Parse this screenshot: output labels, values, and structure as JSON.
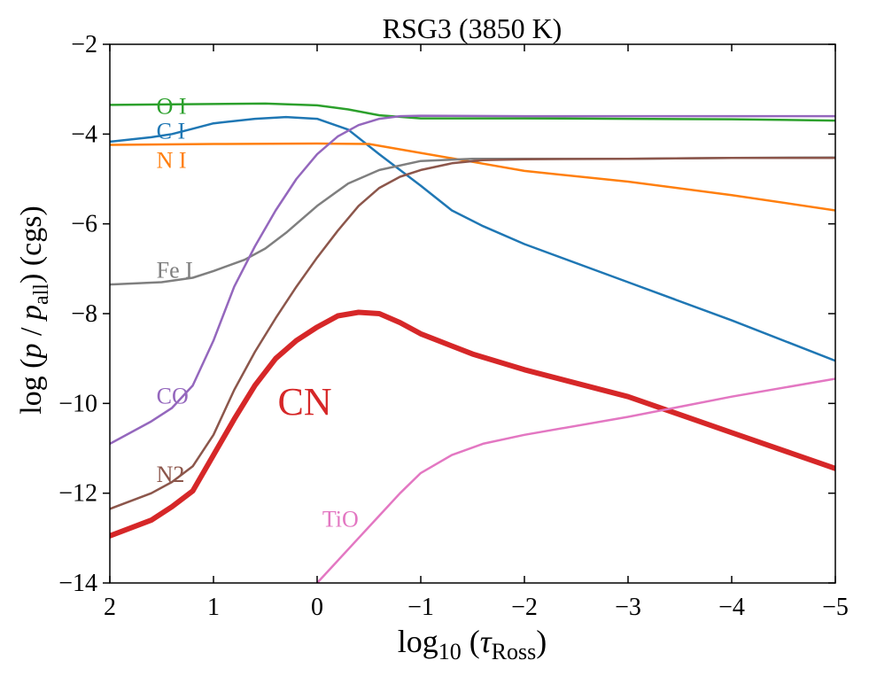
{
  "chart_data": {
    "type": "line",
    "title": "RSG3 (3850 K)",
    "xlabel": {
      "base": "log",
      "sub": "10",
      "mid": " (",
      "tau": "τ",
      "tausub": "Ross",
      "end": ")"
    },
    "ylabel": {
      "a": "log (",
      "p": "p",
      "slash": " / ",
      "p2": "p",
      "sub": "all",
      "end": ") (cgs)"
    },
    "xlim": [
      2,
      -5
    ],
    "ylim": [
      -14,
      -2
    ],
    "xticks": [
      2,
      1,
      0,
      -1,
      -2,
      -3,
      -4,
      -5
    ],
    "xtick_labels": [
      "2",
      "1",
      "0",
      "−1",
      "−2",
      "−3",
      "−4",
      "−5"
    ],
    "yticks": [
      -2,
      -4,
      -6,
      -8,
      -10,
      -12,
      -14
    ],
    "ytick_labels": [
      "−2",
      "−4",
      "−6",
      "−8",
      "−10",
      "−12",
      "−14"
    ],
    "grid": false,
    "series": [
      {
        "name": "O I",
        "color": "#2ca02c",
        "width": 2.5,
        "label_size": 26,
        "label_at": [
          1.55,
          -3.55
        ],
        "points": [
          [
            2,
            -3.35
          ],
          [
            1.5,
            -3.34
          ],
          [
            1,
            -3.33
          ],
          [
            0.5,
            -3.32
          ],
          [
            0,
            -3.36
          ],
          [
            -0.3,
            -3.45
          ],
          [
            -0.6,
            -3.58
          ],
          [
            -1,
            -3.65
          ],
          [
            -2,
            -3.65
          ],
          [
            -3,
            -3.66
          ],
          [
            -4,
            -3.67
          ],
          [
            -5,
            -3.7
          ]
        ]
      },
      {
        "name": "C I",
        "color": "#1f77b4",
        "width": 2.5,
        "label_size": 26,
        "label_at": [
          1.55,
          -4.1
        ],
        "points": [
          [
            2,
            -4.17
          ],
          [
            1.6,
            -4.07
          ],
          [
            1.4,
            -4.0
          ],
          [
            1.2,
            -3.88
          ],
          [
            1,
            -3.76
          ],
          [
            0.6,
            -3.66
          ],
          [
            0.3,
            -3.62
          ],
          [
            0,
            -3.66
          ],
          [
            -0.3,
            -3.9
          ],
          [
            -0.6,
            -4.45
          ],
          [
            -1,
            -5.15
          ],
          [
            -1.3,
            -5.7
          ],
          [
            -1.6,
            -6.05
          ],
          [
            -2,
            -6.45
          ],
          [
            -3,
            -7.3
          ],
          [
            -4,
            -8.15
          ],
          [
            -5,
            -9.05
          ]
        ]
      },
      {
        "name": "N I",
        "color": "#ff7f0e",
        "width": 2.5,
        "label_size": 26,
        "label_at": [
          1.55,
          -4.75
        ],
        "points": [
          [
            2,
            -4.24
          ],
          [
            1,
            -4.22
          ],
          [
            0,
            -4.21
          ],
          [
            -0.5,
            -4.22
          ],
          [
            -1,
            -4.42
          ],
          [
            -1.5,
            -4.62
          ],
          [
            -2,
            -4.82
          ],
          [
            -3,
            -5.06
          ],
          [
            -4,
            -5.36
          ],
          [
            -5,
            -5.7
          ]
        ]
      },
      {
        "name": "Fe I",
        "color": "#7f7f7f",
        "width": 2.5,
        "label_size": 26,
        "label_at": [
          1.55,
          -7.2
        ],
        "points": [
          [
            2,
            -7.35
          ],
          [
            1.5,
            -7.3
          ],
          [
            1.2,
            -7.2
          ],
          [
            1,
            -7.05
          ],
          [
            0.7,
            -6.8
          ],
          [
            0.5,
            -6.55
          ],
          [
            0.3,
            -6.2
          ],
          [
            0,
            -5.6
          ],
          [
            -0.3,
            -5.1
          ],
          [
            -0.6,
            -4.8
          ],
          [
            -1,
            -4.6
          ],
          [
            -1.5,
            -4.55
          ],
          [
            -2,
            -4.55
          ],
          [
            -3,
            -4.55
          ],
          [
            -4,
            -4.53
          ],
          [
            -5,
            -4.52
          ]
        ]
      },
      {
        "name": "CO",
        "color": "#9467bd",
        "width": 2.5,
        "label_size": 26,
        "label_at": [
          1.55,
          -10.0
        ],
        "points": [
          [
            2,
            -10.9
          ],
          [
            1.6,
            -10.4
          ],
          [
            1.4,
            -10.1
          ],
          [
            1.2,
            -9.6
          ],
          [
            1.0,
            -8.6
          ],
          [
            0.8,
            -7.4
          ],
          [
            0.6,
            -6.5
          ],
          [
            0.4,
            -5.7
          ],
          [
            0.2,
            -5.0
          ],
          [
            0,
            -4.45
          ],
          [
            -0.2,
            -4.05
          ],
          [
            -0.4,
            -3.8
          ],
          [
            -0.6,
            -3.66
          ],
          [
            -0.8,
            -3.6
          ],
          [
            -1,
            -3.59
          ],
          [
            -2,
            -3.6
          ],
          [
            -3,
            -3.6
          ],
          [
            -4,
            -3.6
          ],
          [
            -5,
            -3.6
          ]
        ]
      },
      {
        "name": "N2",
        "color": "#8c564b",
        "width": 2.5,
        "label_size": 26,
        "label_at": [
          1.55,
          -11.75
        ],
        "points": [
          [
            2,
            -12.35
          ],
          [
            1.6,
            -12.0
          ],
          [
            1.4,
            -11.75
          ],
          [
            1.2,
            -11.4
          ],
          [
            1.0,
            -10.7
          ],
          [
            0.8,
            -9.7
          ],
          [
            0.6,
            -8.85
          ],
          [
            0.4,
            -8.1
          ],
          [
            0.2,
            -7.4
          ],
          [
            0,
            -6.75
          ],
          [
            -0.2,
            -6.15
          ],
          [
            -0.4,
            -5.6
          ],
          [
            -0.6,
            -5.2
          ],
          [
            -0.8,
            -4.95
          ],
          [
            -1,
            -4.8
          ],
          [
            -1.3,
            -4.65
          ],
          [
            -1.6,
            -4.58
          ],
          [
            -2,
            -4.56
          ],
          [
            -3,
            -4.55
          ],
          [
            -4,
            -4.53
          ],
          [
            -5,
            -4.53
          ]
        ]
      },
      {
        "name": "CN",
        "color": "#d62728",
        "width": 6,
        "label_size": 44,
        "label_at": [
          0.38,
          -10.25
        ],
        "points": [
          [
            2,
            -12.95
          ],
          [
            1.6,
            -12.6
          ],
          [
            1.4,
            -12.3
          ],
          [
            1.2,
            -11.95
          ],
          [
            1.0,
            -11.15
          ],
          [
            0.8,
            -10.35
          ],
          [
            0.6,
            -9.6
          ],
          [
            0.4,
            -9.0
          ],
          [
            0.2,
            -8.6
          ],
          [
            0,
            -8.3
          ],
          [
            -0.2,
            -8.05
          ],
          [
            -0.4,
            -7.97
          ],
          [
            -0.6,
            -8.0
          ],
          [
            -0.8,
            -8.2
          ],
          [
            -1,
            -8.45
          ],
          [
            -1.5,
            -8.9
          ],
          [
            -2,
            -9.25
          ],
          [
            -3,
            -9.85
          ],
          [
            -4,
            -10.65
          ],
          [
            -5,
            -11.45
          ]
        ]
      },
      {
        "name": "TiO",
        "color": "#e377c2",
        "width": 2.5,
        "label_size": 26,
        "label_at": [
          -0.05,
          -12.75
        ],
        "points": [
          [
            0.05,
            -14.2
          ],
          [
            0,
            -14.0
          ],
          [
            -0.2,
            -13.5
          ],
          [
            -0.4,
            -13.0
          ],
          [
            -0.6,
            -12.5
          ],
          [
            -0.8,
            -12.0
          ],
          [
            -1,
            -11.55
          ],
          [
            -1.3,
            -11.15
          ],
          [
            -1.6,
            -10.9
          ],
          [
            -2,
            -10.7
          ],
          [
            -3,
            -10.3
          ],
          [
            -4,
            -9.85
          ],
          [
            -5,
            -9.45
          ]
        ]
      }
    ]
  }
}
